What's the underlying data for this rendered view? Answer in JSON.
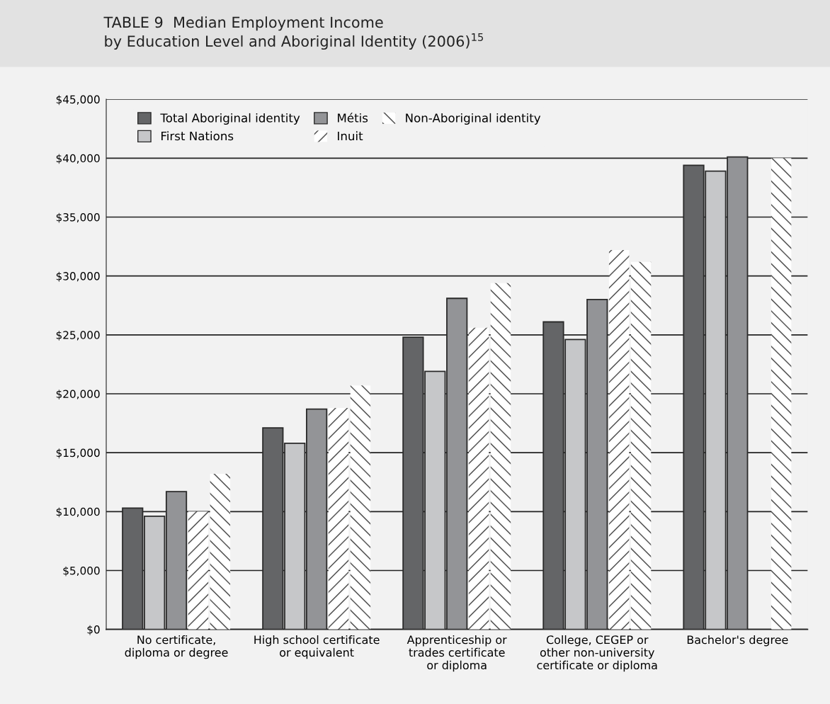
{
  "chart_data": {
    "type": "bar",
    "title": "TABLE 9  Median Employment Income\nby Education Level and Aboriginal Identity (2006)$^{15}$",
    "categories": [
      "No certificate,\ndiploma or degree",
      "High school certificate\nor equivalent",
      "Apprenticeship or\ntrades certificate\nor diploma",
      "College, CEGEP or\nother non-university\ncertificate or diploma",
      "Bachelor's degree"
    ],
    "series": [
      {
        "name": "Total Aboriginal identity",
        "color": "#646567",
        "values": [
          10300,
          17100,
          24800,
          26100,
          39400
        ]
      },
      {
        "name": "First Nations",
        "color": "#c6c7c9",
        "values": [
          9600,
          15800,
          21900,
          24600,
          38900
        ]
      },
      {
        "name": "Métis",
        "color": "#939497",
        "values": [
          11700,
          18700,
          28100,
          28000,
          40100
        ]
      },
      {
        "name": "Inuit",
        "color": "#ffffff",
        "values": [
          10000,
          18800,
          25600,
          32200,
          null
        ]
      },
      {
        "name": "Non-Aboriginal identity",
        "color": "#ffffff",
        "values": [
          13200,
          20700,
          29400,
          31200,
          40000
        ]
      }
    ],
    "ylim": [
      0,
      45000
    ],
    "yticks": [
      {
        "value": 0,
        "label": "$0"
      },
      {
        "value": 5000,
        "label": "$5,000"
      },
      {
        "value": 10000,
        "label": "$10,000"
      },
      {
        "value": 15000,
        "label": "$15,000"
      },
      {
        "value": 20000,
        "label": "$20,000"
      },
      {
        "value": 25000,
        "label": "$25,000"
      },
      {
        "value": 30000,
        "label": "$30,000"
      },
      {
        "value": 35000,
        "label": "$35,000"
      },
      {
        "value": 40000,
        "label": "$40,000"
      },
      {
        "value": 45000,
        "label": "$45,000"
      }
    ],
    "grid": "y",
    "legend": "top left"
  }
}
